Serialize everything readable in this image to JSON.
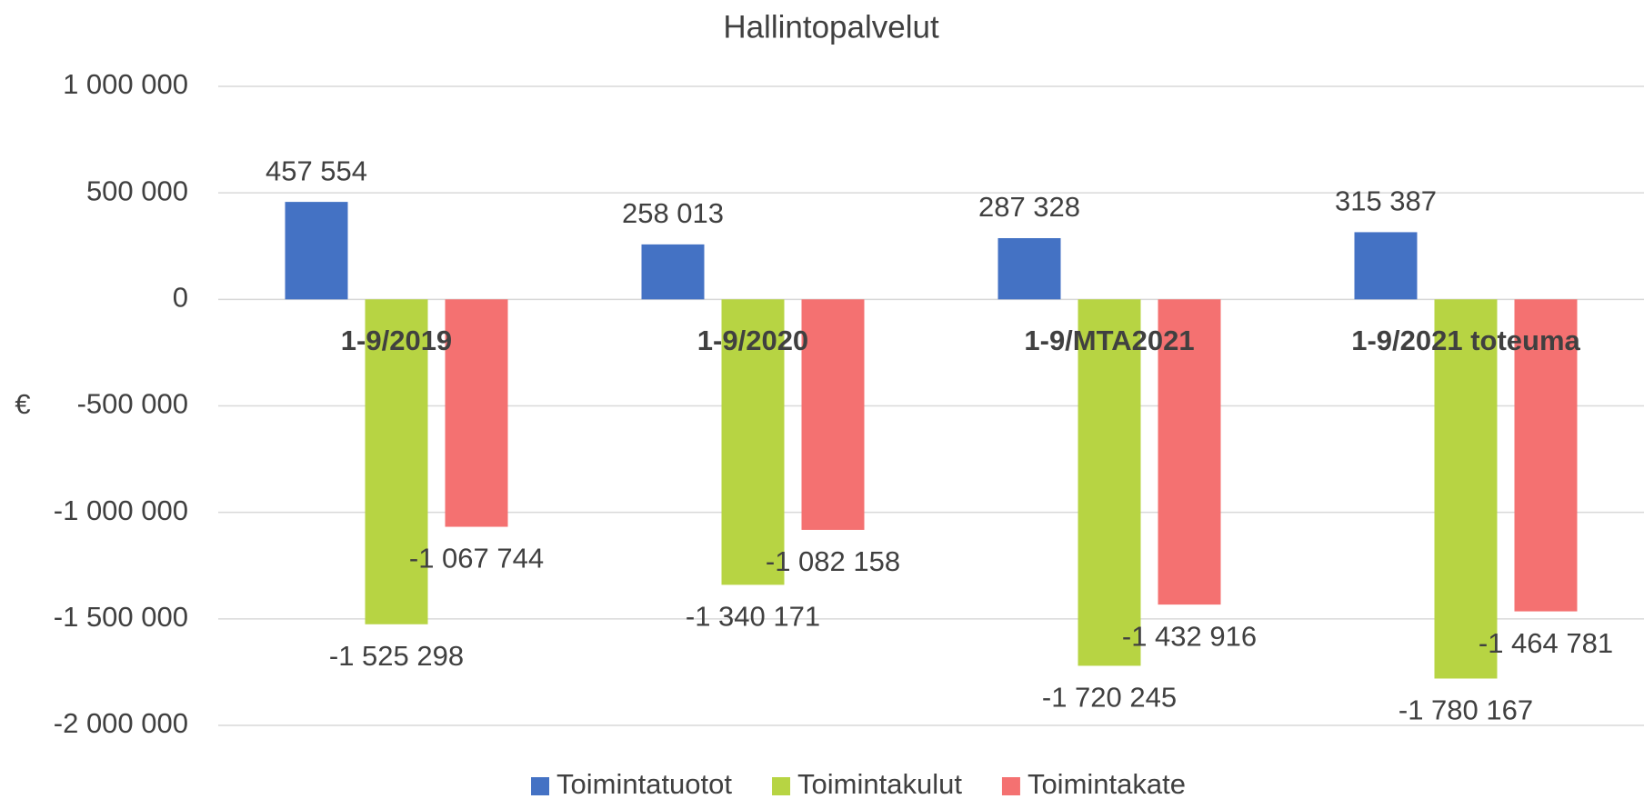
{
  "chart_data": {
    "type": "bar",
    "title": "Hallintopalvelut",
    "y_label": "€",
    "categories": [
      "1-9/2019",
      "1-9/2020",
      "1-9/MTA2021",
      "1-9/2021 toteuma"
    ],
    "series": [
      {
        "name": "Toimintatuotot",
        "color": "#4472c4",
        "values": [
          457554,
          258013,
          287328,
          315387
        ],
        "value_labels": [
          "457 554",
          "258 013",
          "287 328",
          "315 387"
        ]
      },
      {
        "name": "Toimintakulut",
        "color": "#b7d443",
        "values": [
          -1525298,
          -1340171,
          -1720245,
          -1780167
        ],
        "value_labels": [
          "-1 525 298",
          "-1 340 171",
          "-1 720 245",
          "-1 780 167"
        ]
      },
      {
        "name": "Toimintakate",
        "color": "#f47171",
        "values": [
          -1067744,
          -1082158,
          -1432916,
          -1464781
        ],
        "value_labels": [
          "-1 067 744",
          "-1 082 158",
          "-1 432 916",
          "-1 464 781"
        ]
      }
    ],
    "ylim": [
      -2000000,
      1000000
    ],
    "yticks": [
      {
        "value": -2000000,
        "label": "-2 000 000"
      },
      {
        "value": -1500000,
        "label": "-1 500 000"
      },
      {
        "value": -1000000,
        "label": "-1 000 000"
      },
      {
        "value": -500000,
        "label": "-500 000"
      },
      0,
      {
        "value": 500000,
        "label": "500 000"
      },
      {
        "value": 1000000,
        "label": "1 000 000"
      }
    ],
    "grid": true,
    "legend": "bottom"
  }
}
